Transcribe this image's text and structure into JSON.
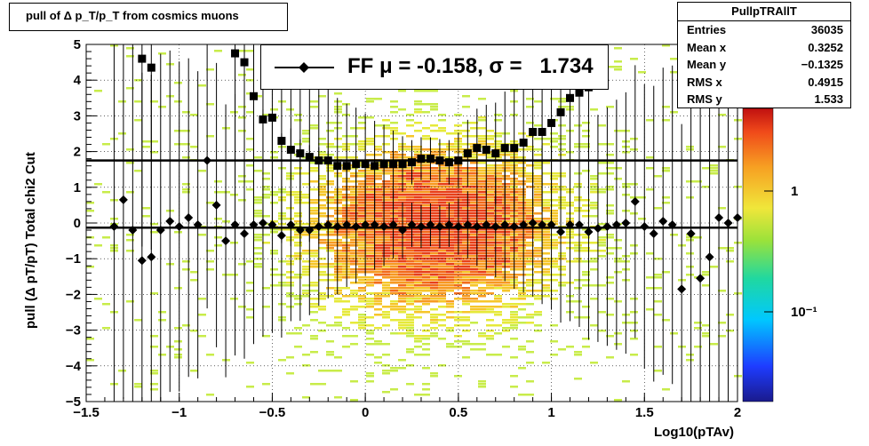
{
  "title": "pull of Δ p_T/p_T from cosmics muons",
  "stats": {
    "name": "PullpTRAllT",
    "rows": [
      {
        "k": "Entries",
        "v": "36035"
      },
      {
        "k": "Mean x",
        "v": "0.3252"
      },
      {
        "k": "Mean y",
        "v": "−0.1325"
      },
      {
        "k": "RMS x",
        "v": "0.4915"
      },
      {
        "k": "RMS y",
        "v": "1.533"
      }
    ]
  },
  "legend": {
    "label": "FF μ = -0.158, σ =   1.734"
  },
  "chart_data": {
    "type": "scatter",
    "xlabel": "Log10(pTAv)",
    "ylabel": "pull (Δ pT/pT)  Total chi2 Cut",
    "xlim": [
      -1.5,
      2
    ],
    "ylim": [
      -5,
      5
    ],
    "xticks": [
      "−1.5",
      "−1",
      "−0.5",
      "0",
      "0.5",
      "1",
      "1.5",
      "2"
    ],
    "yticks": [
      "−5",
      "−4",
      "−3",
      "−2",
      "−1",
      "0",
      "1",
      "2",
      "3",
      "4",
      "5"
    ],
    "colorbar_ticks": [
      "1",
      "10⁻¹"
    ],
    "series": [
      {
        "marker": "square",
        "x": [
          -1.2,
          -1.15,
          -0.7,
          -0.65,
          -0.6,
          -0.55,
          -0.5,
          -0.45,
          -0.4,
          -0.35,
          -0.3,
          -0.25,
          -0.2,
          -0.15,
          -0.1,
          -0.05,
          0.0,
          0.05,
          0.1,
          0.15,
          0.2,
          0.25,
          0.3,
          0.35,
          0.4,
          0.45,
          0.5,
          0.55,
          0.6,
          0.65,
          0.7,
          0.75,
          0.8,
          0.85,
          0.9,
          0.95,
          1.0,
          1.05,
          1.1,
          1.15,
          1.2
        ],
        "y": [
          4.6,
          4.35,
          4.75,
          4.5,
          3.55,
          2.9,
          2.95,
          2.3,
          2.05,
          1.95,
          1.85,
          1.75,
          1.75,
          1.6,
          1.6,
          1.65,
          1.65,
          1.6,
          1.65,
          1.65,
          1.65,
          1.7,
          1.8,
          1.8,
          1.75,
          1.7,
          1.75,
          1.95,
          2.1,
          2.05,
          1.95,
          2.1,
          2.1,
          2.25,
          2.55,
          2.55,
          2.8,
          3.1,
          3.5,
          3.65,
          3.8
        ]
      },
      {
        "marker": "diamond",
        "x": [
          -1.35,
          -1.3,
          -1.25,
          -1.2,
          -1.15,
          -1.1,
          -1.05,
          -1.0,
          -0.95,
          -0.9,
          -0.85,
          -0.8,
          -0.75,
          -0.7,
          -0.65,
          -0.6,
          -0.55,
          -0.5,
          -0.45,
          -0.4,
          -0.35,
          -0.3,
          -0.25,
          -0.2,
          -0.15,
          -0.1,
          -0.05,
          0.0,
          0.05,
          0.1,
          0.15,
          0.2,
          0.25,
          0.3,
          0.35,
          0.4,
          0.45,
          0.5,
          0.55,
          0.6,
          0.65,
          0.7,
          0.75,
          0.8,
          0.85,
          0.9,
          0.95,
          1.0,
          1.05,
          1.1,
          1.15,
          1.2,
          1.25,
          1.3,
          1.35,
          1.4,
          1.45,
          1.5,
          1.55,
          1.6,
          1.65,
          1.7,
          1.75,
          1.8,
          1.85,
          1.9,
          1.95,
          2.0
        ],
        "y": [
          -0.1,
          0.65,
          -0.2,
          -1.05,
          -0.95,
          -0.2,
          0.05,
          -0.1,
          0.15,
          -0.05,
          1.75,
          0.5,
          -0.5,
          -0.05,
          -0.3,
          -0.05,
          0.0,
          -0.05,
          -0.35,
          -0.05,
          -0.2,
          -0.2,
          -0.1,
          -0.05,
          -0.1,
          -0.05,
          -0.1,
          -0.05,
          -0.05,
          -0.1,
          -0.05,
          -0.2,
          -0.05,
          -0.1,
          -0.05,
          -0.1,
          -0.05,
          -0.1,
          -0.05,
          -0.1,
          -0.05,
          -0.1,
          -0.05,
          -0.1,
          -0.05,
          0.0,
          -0.05,
          -0.05,
          -0.25,
          -0.05,
          -0.05,
          -0.25,
          -0.15,
          -0.1,
          -0.05,
          0.0,
          0.6,
          -0.1,
          -0.3,
          0.05,
          -0.05,
          -1.85,
          -0.3,
          -1.55,
          -0.95,
          0.15,
          0.0,
          0.15
        ]
      }
    ],
    "fit_lines": [
      1.75,
      -0.13
    ]
  }
}
